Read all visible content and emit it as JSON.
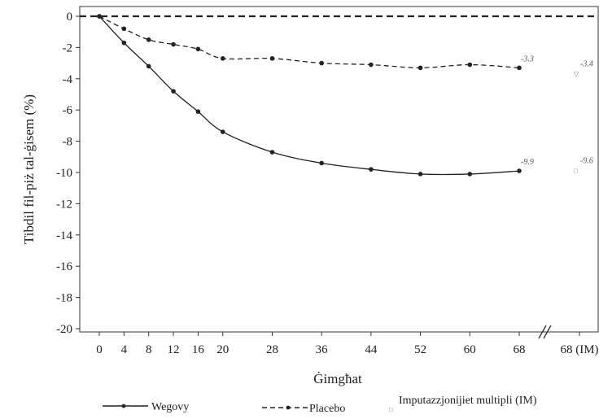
{
  "chart_data": {
    "type": "line",
    "xlabel": "Ġimgħat",
    "ylabel": "Tibdil fil-piż tal-ġisem (%)",
    "ylim": [
      -20,
      0
    ],
    "yticks": [
      "0",
      "-2",
      "-4",
      "-6",
      "-8",
      "-10",
      "-12",
      "-14",
      "-16",
      "-18",
      "-20"
    ],
    "xticks": [
      "0",
      "4",
      "8",
      "12",
      "16",
      "20",
      "28",
      "36",
      "44",
      "52",
      "60",
      "68",
      "68 (IM)"
    ],
    "x": [
      0,
      4,
      8,
      12,
      16,
      20,
      28,
      36,
      44,
      52,
      60,
      68
    ],
    "series": [
      {
        "name": "Wegovy",
        "line_style": "solid",
        "color": "#222222",
        "values": [
          0,
          -1.7,
          -3.2,
          -4.8,
          -6.1,
          -7.4,
          -8.7,
          -9.4,
          -9.8,
          -10.1,
          -10.1,
          -9.9
        ],
        "end_label": "-9.9",
        "mi_value": -9.6,
        "mi_label": "-9.6",
        "mi_marker": "□"
      },
      {
        "name": "Placebo",
        "line_style": "dashed",
        "color": "#222222",
        "values": [
          0,
          -0.8,
          -1.5,
          -1.8,
          -2.1,
          -2.7,
          -2.7,
          -3.0,
          -3.1,
          -3.3,
          -3.1,
          -3.3
        ],
        "end_label": "-3.3",
        "mi_value": -3.4,
        "mi_label": "-3.4",
        "mi_marker": "▽"
      }
    ],
    "baseline": {
      "value": 0,
      "style": "dashed"
    },
    "legend": {
      "placement": "bottom",
      "items": [
        "Wegovy",
        "Placebo"
      ],
      "mi_text": "Imputazzjonijiet multipli (IM)",
      "mi_marker": "□"
    },
    "grid": false
  }
}
